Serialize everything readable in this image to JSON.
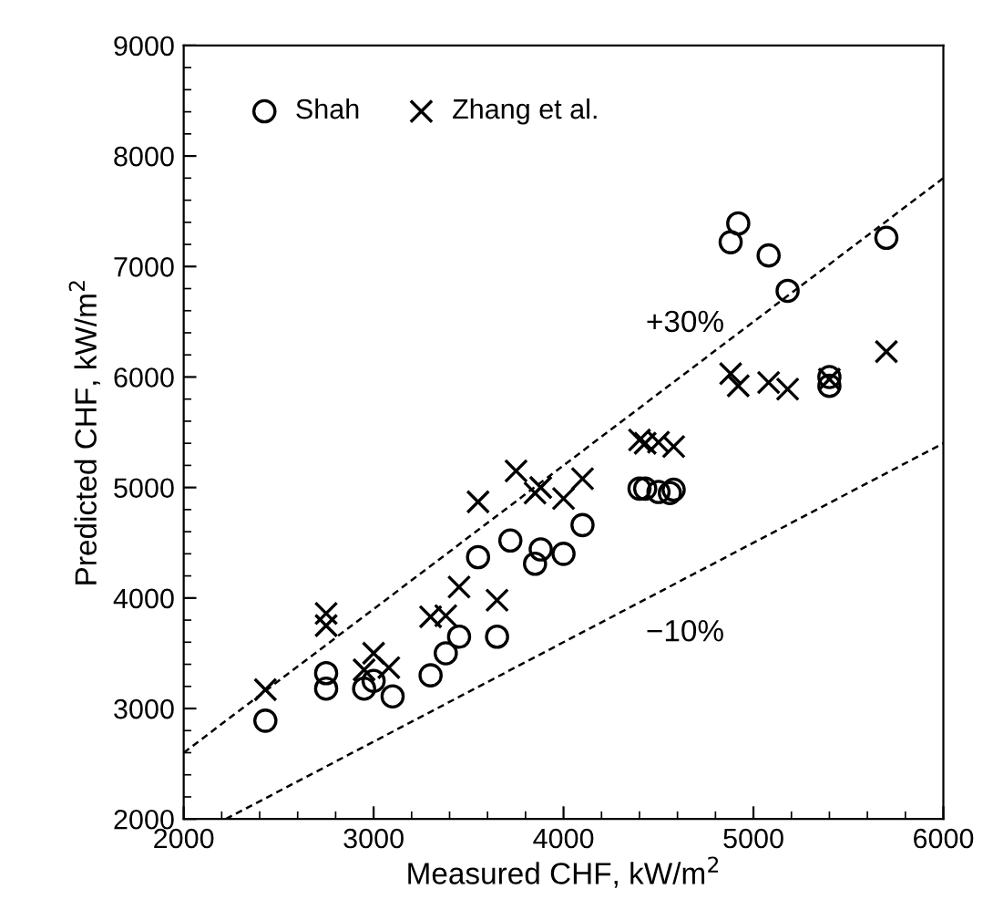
{
  "chart_data": {
    "type": "scatter",
    "xlabel": "Measured CHF, kW/m$^{2}$",
    "ylabel": "Predicted CHF, kW/m$^{2}$",
    "xlim": [
      2000,
      6000
    ],
    "xticks": [
      2000,
      3000,
      4000,
      5000,
      6000
    ],
    "ylim": [
      2000,
      9000
    ],
    "yticks": [
      2000,
      3000,
      4000,
      5000,
      6000,
      7000,
      8000,
      9000
    ],
    "grid": false,
    "legend": "top left",
    "series": [
      {
        "name": "Shah",
        "color": "#000000",
        "marker": "circle",
        "x": [
          2430,
          2750,
          2750,
          2950,
          3000,
          3100,
          3300,
          3380,
          3450,
          3550,
          3650,
          3720,
          3850,
          3880,
          4000,
          4100,
          4400,
          4430,
          4500,
          4560,
          4580,
          4880,
          4920,
          5080,
          5180,
          5400,
          5400,
          5700
        ],
        "values": [
          2890,
          3320,
          3180,
          3180,
          3250,
          3110,
          3300,
          3500,
          3650,
          4370,
          3650,
          4520,
          4310,
          4440,
          4400,
          4660,
          4990,
          4990,
          4960,
          4950,
          4980,
          7220,
          7390,
          7100,
          6780,
          5920,
          6000,
          7260
        ]
      },
      {
        "name": "Zhang et al.",
        "color": "#000000",
        "marker": "cross",
        "x": [
          2430,
          2750,
          2750,
          2950,
          3000,
          3080,
          3300,
          3380,
          3450,
          3550,
          3650,
          3750,
          3850,
          3880,
          4000,
          4100,
          4400,
          4430,
          4500,
          4580,
          4880,
          4920,
          5080,
          5180,
          5400,
          5700
        ],
        "values": [
          3170,
          3860,
          3750,
          3350,
          3500,
          3370,
          3830,
          3840,
          4100,
          4870,
          3980,
          5150,
          4950,
          5000,
          4900,
          5080,
          5430,
          5400,
          5410,
          5370,
          6030,
          5920,
          5950,
          5890,
          5980,
          6230
        ]
      },
      {
        "type": "line",
        "color": "#000000",
        "line_style": "dashed",
        "x": [
          2000,
          6000
        ],
        "values": [
          2600,
          7800
        ]
      },
      {
        "type": "line",
        "color": "#000000",
        "line_style": "dashed",
        "x": [
          2222,
          6000
        ],
        "values": [
          2000,
          5400
        ]
      }
    ],
    "annotations": [
      "+30%",
      "−10%"
    ]
  }
}
